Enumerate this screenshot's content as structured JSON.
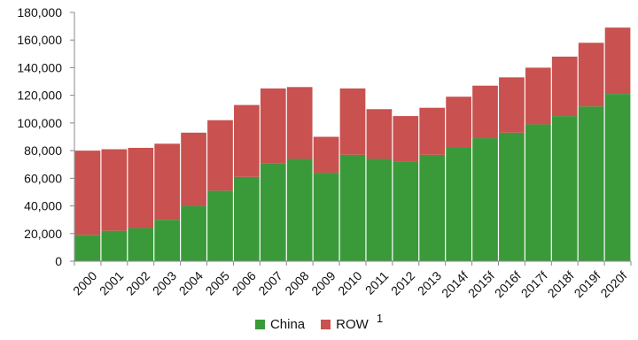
{
  "chart_data": {
    "type": "bar",
    "stacked": true,
    "categories": [
      "2000",
      "2001",
      "2002",
      "2003",
      "2004",
      "2005",
      "2006",
      "2007",
      "2008",
      "2009",
      "2010",
      "2011",
      "2012",
      "2013",
      "2014f",
      "2015f",
      "2016f",
      "2017f",
      "2018f",
      "2019f",
      "2020f"
    ],
    "series": [
      {
        "name": "China",
        "color": "#3a9a3a",
        "values": [
          19000,
          22000,
          24000,
          30000,
          40000,
          51000,
          61000,
          71000,
          74000,
          64000,
          77000,
          74000,
          72000,
          77000,
          82000,
          89000,
          93000,
          99000,
          105000,
          112000,
          121000
        ]
      },
      {
        "name": "ROW",
        "color": "#c9514f",
        "values": [
          61000,
          59000,
          58000,
          55000,
          53000,
          51000,
          52000,
          54000,
          52000,
          26000,
          48000,
          36000,
          33000,
          34000,
          37000,
          38000,
          40000,
          41000,
          43000,
          46000,
          48000
        ]
      }
    ],
    "title": "",
    "xlabel": "",
    "ylabel": "",
    "ylim": [
      0,
      180000
    ],
    "y_ticks": [
      "0",
      "20,000",
      "40,000",
      "60,000",
      "80,000",
      "100,000",
      "120,000",
      "140,000",
      "160,000",
      "180,000"
    ],
    "grid": false,
    "legend": {
      "placement": "bottom",
      "items": [
        {
          "label": "China",
          "color": "#3a9a3a",
          "superscript": ""
        },
        {
          "label": "ROW",
          "color": "#c9514f",
          "superscript": "1"
        }
      ]
    }
  }
}
